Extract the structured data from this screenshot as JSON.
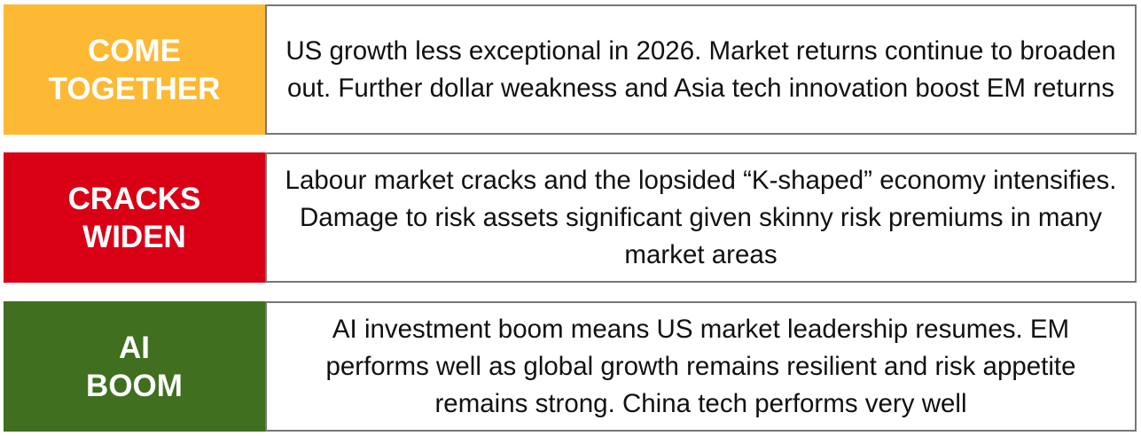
{
  "scenarios": [
    {
      "label": "COME\nTOGETHER",
      "color": "#FDB933",
      "description": "US growth less exceptional in 2026. Market returns continue to broaden out. Further dollar weakness and Asia tech innovation boost EM returns"
    },
    {
      "label": "CRACKS\nWIDEN",
      "color": "#D90016",
      "description": "Labour market cracks and the lopsided “K-shaped” economy intensifies. Damage to risk assets significant given skinny risk premiums in many market areas"
    },
    {
      "label": "AI\nBOOM",
      "color": "#3F6F1F",
      "description": "AI investment boom means US market leadership resumes. EM performs well as global growth remains resilient and risk appetite remains strong. China tech performs very well"
    }
  ]
}
